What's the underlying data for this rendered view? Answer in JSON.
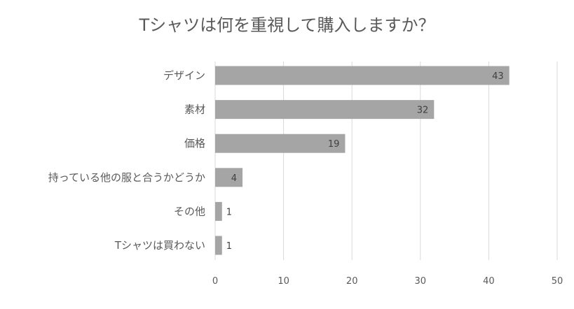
{
  "chart_data": {
    "type": "bar",
    "orientation": "horizontal",
    "title": "Tシャツは何を重視して購入しますか？",
    "categories": [
      "デザイン",
      "素材",
      "価格",
      "持っている他の服と合うかどうか",
      "その他",
      "Tシャツは買わない"
    ],
    "values": [
      43,
      32,
      19,
      4,
      1,
      1
    ],
    "xlabel": "",
    "ylabel": "",
    "xlim": [
      0,
      50
    ],
    "xticks": [
      0,
      10,
      20,
      30,
      40,
      50
    ],
    "grid": true,
    "data_labels": true,
    "legend": "none",
    "bar_color": "#a5a5a5",
    "grid_color": "#d9d9d9"
  }
}
